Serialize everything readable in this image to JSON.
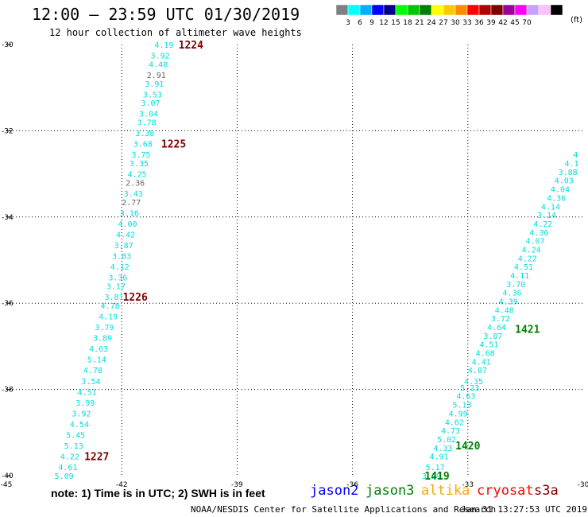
{
  "header": {
    "title": "12:00 — 23:59 UTC 01/30/2019",
    "subtitle": "12 hour collection of altimeter wave heights"
  },
  "color_scale": {
    "colors": [
      "#808080",
      "#00ffff",
      "#00b2ff",
      "#0000ff",
      "#00008b",
      "#00ff00",
      "#00c800",
      "#008000",
      "#ffff00",
      "#ffc800",
      "#ff8c00",
      "#ff0000",
      "#b40000",
      "#800000",
      "#a000a0",
      "#ff00ff",
      "#c8a0ff",
      "#ffc0ff",
      "#000000"
    ],
    "labels": [
      "3",
      "6",
      "9",
      "12",
      "15",
      "18",
      "21",
      "24",
      "27",
      "30",
      "33",
      "36",
      "39",
      "42",
      "45",
      "70"
    ],
    "units": "(ft)"
  },
  "footer": {
    "note": "note:  1) Time is in UTC; 2) SWH is in feet",
    "source": "NOAA/NESDIS Center for Satellite Applications and Research",
    "timestamp": "Jan 31 13:27:53 UTC 2019"
  },
  "satellites": [
    {
      "name": "jason2",
      "color": "#0000ff"
    },
    {
      "name": "jason3",
      "color": "#008000"
    },
    {
      "name": "altika",
      "color": "#ffa500"
    },
    {
      "name": "cryosat",
      "color": "#ff0000"
    },
    {
      "name": "s3a",
      "color": "#800000"
    }
  ],
  "chart_data": {
    "type": "scatter",
    "title": "12:00 — 23:59 UTC 01/30/2019",
    "subtitle": "12 hour collection of altimeter wave heights",
    "xlim": [
      -45,
      -30
    ],
    "ylim": [
      -40,
      -30
    ],
    "x_ticks": [
      "-45",
      "-42",
      "-39",
      "-36",
      "-33",
      "-30"
    ],
    "y_ticks": [
      "-30",
      "-32",
      "-34",
      "-36",
      "-38",
      "-40"
    ],
    "grid": true,
    "track_a": {
      "color": "#00dddd",
      "points": [
        {
          "lon": -40.9,
          "lat": -30.0,
          "v": "4.19"
        },
        {
          "lon": -41.0,
          "lat": -30.25,
          "v": "3.92"
        },
        {
          "lon": -41.05,
          "lat": -30.45,
          "v": "4.40"
        },
        {
          "lon": -41.1,
          "lat": -30.7,
          "v": "2.91"
        },
        {
          "lon": -41.15,
          "lat": -30.9,
          "v": "3.91"
        },
        {
          "lon": -41.2,
          "lat": -31.15,
          "v": "3.53"
        },
        {
          "lon": -41.25,
          "lat": -31.35,
          "v": "3.07"
        },
        {
          "lon": -41.3,
          "lat": -31.6,
          "v": "3.04"
        },
        {
          "lon": -41.35,
          "lat": -31.8,
          "v": "3.78"
        },
        {
          "lon": -41.4,
          "lat": -32.05,
          "v": "3.38"
        },
        {
          "lon": -41.45,
          "lat": -32.3,
          "v": "3.68"
        },
        {
          "lon": -41.5,
          "lat": -32.55,
          "v": "3.75"
        },
        {
          "lon": -41.55,
          "lat": -32.75,
          "v": "3.35"
        },
        {
          "lon": -41.6,
          "lat": -33.0,
          "v": "4.25"
        },
        {
          "lon": -41.65,
          "lat": -33.2,
          "v": "2.36"
        },
        {
          "lon": -41.7,
          "lat": -33.45,
          "v": "3.43"
        },
        {
          "lon": -41.75,
          "lat": -33.65,
          "v": "2.77"
        },
        {
          "lon": -41.8,
          "lat": -33.9,
          "v": "3.16"
        },
        {
          "lon": -41.85,
          "lat": -34.15,
          "v": "4.00"
        },
        {
          "lon": -41.9,
          "lat": -34.4,
          "v": "4.42"
        },
        {
          "lon": -41.95,
          "lat": -34.65,
          "v": "3.87"
        },
        {
          "lon": -42.0,
          "lat": -34.9,
          "v": "3.83"
        },
        {
          "lon": -42.05,
          "lat": -35.15,
          "v": "4.12"
        },
        {
          "lon": -42.1,
          "lat": -35.4,
          "v": "3.36"
        },
        {
          "lon": -42.15,
          "lat": -35.6,
          "v": "3.17"
        },
        {
          "lon": -42.2,
          "lat": -35.85,
          "v": "3.81"
        },
        {
          "lon": -42.3,
          "lat": -36.05,
          "v": "4.78"
        },
        {
          "lon": -42.35,
          "lat": -36.3,
          "v": "4.19"
        },
        {
          "lon": -42.45,
          "lat": -36.55,
          "v": "3.79"
        },
        {
          "lon": -42.5,
          "lat": -36.8,
          "v": "3.89"
        },
        {
          "lon": -42.6,
          "lat": -37.05,
          "v": "4.63"
        },
        {
          "lon": -42.65,
          "lat": -37.3,
          "v": "5.14"
        },
        {
          "lon": -42.75,
          "lat": -37.55,
          "v": "4.78"
        },
        {
          "lon": -42.8,
          "lat": -37.8,
          "v": "3.54"
        },
        {
          "lon": -42.9,
          "lat": -38.05,
          "v": "4.51"
        },
        {
          "lon": -42.95,
          "lat": -38.3,
          "v": "3.99"
        },
        {
          "lon": -43.05,
          "lat": -38.55,
          "v": "3.92"
        },
        {
          "lon": -43.1,
          "lat": -38.8,
          "v": "4.54"
        },
        {
          "lon": -43.2,
          "lat": -39.05,
          "v": "5.45"
        },
        {
          "lon": -43.25,
          "lat": -39.3,
          "v": "5.13"
        },
        {
          "lon": -43.35,
          "lat": -39.55,
          "v": "4.22"
        },
        {
          "lon": -43.4,
          "lat": -39.8,
          "v": "4.61"
        },
        {
          "lon": -43.5,
          "lat": -40.0,
          "v": "5.09"
        }
      ],
      "time_labels": [
        {
          "lon": -40.2,
          "lat": -30.0,
          "text": "1224"
        },
        {
          "lon": -40.65,
          "lat": -32.3,
          "text": "1225"
        },
        {
          "lon": -41.65,
          "lat": -35.85,
          "text": "1226"
        },
        {
          "lon": -42.65,
          "lat": -39.55,
          "text": "1227"
        }
      ]
    },
    "track_b": {
      "color": "#00dddd",
      "points": [
        {
          "lon": -33.95,
          "lat": -40.0,
          "v": "3.29"
        },
        {
          "lon": -33.85,
          "lat": -39.8,
          "v": "5.17"
        },
        {
          "lon": -33.75,
          "lat": -39.55,
          "v": "4.91"
        },
        {
          "lon": -33.65,
          "lat": -39.35,
          "v": "4.33"
        },
        {
          "lon": -33.55,
          "lat": -39.15,
          "v": "5.02"
        },
        {
          "lon": -33.45,
          "lat": -38.95,
          "v": "4.73"
        },
        {
          "lon": -33.35,
          "lat": -38.75,
          "v": "4.62"
        },
        {
          "lon": -33.25,
          "lat": -38.55,
          "v": "4.99"
        },
        {
          "lon": -33.15,
          "lat": -38.35,
          "v": "5.13"
        },
        {
          "lon": -33.05,
          "lat": -38.15,
          "v": "4.63"
        },
        {
          "lon": -32.95,
          "lat": -37.95,
          "v": "5.23"
        },
        {
          "lon": -32.85,
          "lat": -37.8,
          "v": "4.35"
        },
        {
          "lon": -32.75,
          "lat": -37.55,
          "v": "4.87"
        },
        {
          "lon": -32.65,
          "lat": -37.35,
          "v": "4.41"
        },
        {
          "lon": -32.55,
          "lat": -37.15,
          "v": "4.68"
        },
        {
          "lon": -32.45,
          "lat": -36.95,
          "v": "4.51"
        },
        {
          "lon": -32.35,
          "lat": -36.75,
          "v": "3.87"
        },
        {
          "lon": -32.25,
          "lat": -36.55,
          "v": "4.64"
        },
        {
          "lon": -32.15,
          "lat": -36.35,
          "v": "3.72"
        },
        {
          "lon": -32.05,
          "lat": -36.15,
          "v": "4.48"
        },
        {
          "lon": -31.95,
          "lat": -35.95,
          "v": "4.39"
        },
        {
          "lon": -31.85,
          "lat": -35.75,
          "v": "4.36"
        },
        {
          "lon": -31.75,
          "lat": -35.55,
          "v": "3.70"
        },
        {
          "lon": -31.65,
          "lat": -35.35,
          "v": "4.11"
        },
        {
          "lon": -31.55,
          "lat": -35.15,
          "v": "4.51"
        },
        {
          "lon": -31.45,
          "lat": -34.95,
          "v": "4.22"
        },
        {
          "lon": -31.35,
          "lat": -34.75,
          "v": "4.24"
        },
        {
          "lon": -31.25,
          "lat": -34.55,
          "v": "4.07"
        },
        {
          "lon": -31.15,
          "lat": -34.35,
          "v": "4.36"
        },
        {
          "lon": -31.05,
          "lat": -34.15,
          "v": "4.22"
        },
        {
          "lon": -30.95,
          "lat": -33.95,
          "v": "3.14"
        },
        {
          "lon": -30.85,
          "lat": -33.75,
          "v": "4.14"
        },
        {
          "lon": -30.7,
          "lat": -33.55,
          "v": "4.36"
        },
        {
          "lon": -30.6,
          "lat": -33.35,
          "v": "4.04"
        },
        {
          "lon": -30.5,
          "lat": -33.15,
          "v": "4.03"
        },
        {
          "lon": -30.4,
          "lat": -32.95,
          "v": "3.88"
        },
        {
          "lon": -30.3,
          "lat": -32.75,
          "v": "4.1"
        },
        {
          "lon": -30.2,
          "lat": -32.55,
          "v": "4"
        }
      ],
      "time_labels": [
        {
          "lon": -31.45,
          "lat": -36.6,
          "text": "1421"
        },
        {
          "lon": -33.0,
          "lat": -39.3,
          "text": "1420"
        },
        {
          "lon": -33.8,
          "lat": -40.0,
          "text": "1419"
        }
      ]
    }
  }
}
